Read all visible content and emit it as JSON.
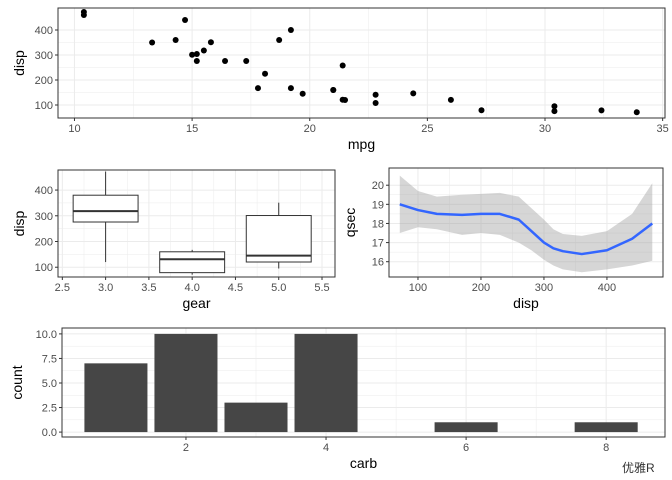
{
  "watermark": "优雅R",
  "colors": {
    "panel_border": "#333333",
    "grid": "#ebebeb",
    "point": "#000000",
    "bar": "#464646",
    "smooth_line": "#3366ff",
    "ribbon": "#cccccc"
  },
  "chart_data": [
    {
      "type": "scatter",
      "xlabel": "mpg",
      "ylabel": "disp",
      "xlim": [
        9.3,
        35.1
      ],
      "ylim": [
        48,
        488
      ],
      "xticks": [
        10,
        15,
        20,
        25,
        30,
        35
      ],
      "yticks": [
        100,
        200,
        300,
        400
      ],
      "grid": true,
      "x": [
        21,
        21,
        22.8,
        21.4,
        18.7,
        18.1,
        14.3,
        24.4,
        22.8,
        19.2,
        17.8,
        16.4,
        17.3,
        15.2,
        10.4,
        10.4,
        14.7,
        32.4,
        30.4,
        33.9,
        21.5,
        15.5,
        15.2,
        13.3,
        19.2,
        27.3,
        26,
        30.4,
        15.8,
        19.7,
        15,
        21.4
      ],
      "y": [
        160,
        160,
        108,
        258,
        360,
        225,
        360,
        146.7,
        140.8,
        167.6,
        167.6,
        275.8,
        275.8,
        275.8,
        472,
        460,
        440,
        78.7,
        75.7,
        71.1,
        120.1,
        318,
        304,
        350,
        400,
        79,
        120.3,
        95.1,
        351,
        145,
        301,
        121
      ]
    },
    {
      "type": "boxplot",
      "xlabel": "gear",
      "ylabel": "disp",
      "xlim": [
        2.45,
        5.65
      ],
      "ylim": [
        62,
        478
      ],
      "xticks": [
        "2.5",
        "3.0",
        "3.5",
        "4.0",
        "4.5",
        "5.0",
        "5.5"
      ],
      "yticks": [
        100,
        200,
        300,
        400
      ],
      "grid": true,
      "boxes": [
        {
          "x": 3,
          "min": 120.1,
          "q1": 275.8,
          "median": 318,
          "q3": 380,
          "max": 472
        },
        {
          "x": 4,
          "min": 71.1,
          "q1": 78.9,
          "median": 130.9,
          "q3": 160,
          "max": 167.6
        },
        {
          "x": 5,
          "min": 95.1,
          "q1": 120.3,
          "median": 145,
          "q3": 301,
          "max": 351
        }
      ]
    },
    {
      "type": "line",
      "xlabel": "disp",
      "ylabel": "qsec",
      "xlim": [
        54,
        489
      ],
      "ylim": [
        15.2,
        20.9
      ],
      "xticks": [
        100,
        200,
        300,
        400
      ],
      "yticks": [
        16,
        17,
        18,
        19,
        20
      ],
      "grid": true,
      "x": [
        71.1,
        100,
        130,
        170,
        200,
        230,
        260,
        280,
        300,
        315,
        330,
        360,
        400,
        440,
        472
      ],
      "y": [
        19.0,
        18.7,
        18.5,
        18.45,
        18.5,
        18.5,
        18.2,
        17.6,
        17.0,
        16.7,
        16.55,
        16.4,
        16.6,
        17.2,
        18.0
      ],
      "lower": [
        17.5,
        17.8,
        17.7,
        17.4,
        17.5,
        17.4,
        17.0,
        16.6,
        16.1,
        15.8,
        15.6,
        15.45,
        15.6,
        15.8,
        16.05
      ],
      "upper": [
        20.5,
        19.7,
        19.4,
        19.5,
        19.55,
        19.6,
        19.4,
        18.8,
        18.2,
        17.7,
        17.45,
        17.35,
        17.6,
        18.5,
        20.1
      ]
    },
    {
      "type": "bar",
      "xlabel": "carb",
      "ylabel": "count",
      "xlim": [
        0.23,
        8.84
      ],
      "ylim": [
        -0.5,
        10.6
      ],
      "xticks": [
        2,
        4,
        6,
        8
      ],
      "yticks": [
        "0.0",
        "2.5",
        "5.0",
        "7.5",
        "10.0"
      ],
      "grid": true,
      "categories": [
        1,
        2,
        3,
        4,
        6,
        8
      ],
      "values": [
        7,
        10,
        3,
        10,
        1,
        1
      ]
    }
  ]
}
